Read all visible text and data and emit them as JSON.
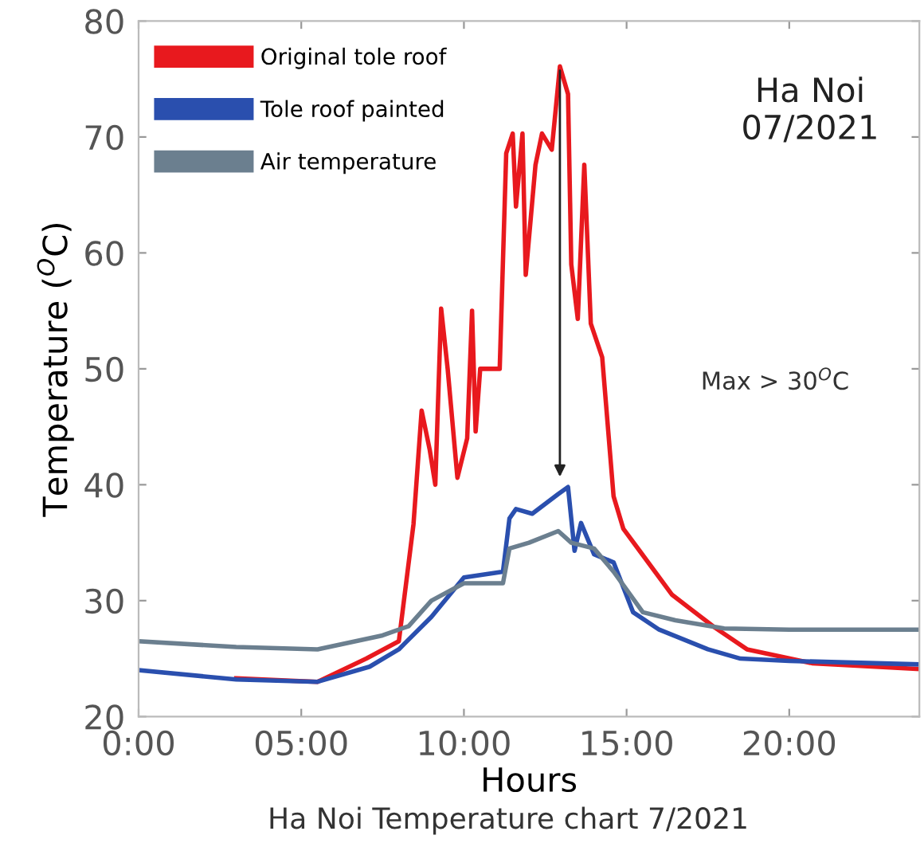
{
  "chart_data": {
    "type": "line",
    "xlabel": "Hours",
    "ylabel": "Temperature ($^{O}$C)",
    "xlim": [
      0,
      24
    ],
    "ylim": [
      20,
      80
    ],
    "xticks": [
      {
        "value": 0,
        "label": "0:00"
      },
      {
        "value": 5,
        "label": "05:00"
      },
      {
        "value": 10,
        "label": "10:00"
      },
      {
        "value": 15,
        "label": "15:00"
      },
      {
        "value": 20,
        "label": "20:00"
      }
    ],
    "yticks": [
      20,
      30,
      40,
      50,
      60,
      70,
      80
    ],
    "grid": false,
    "legend": "top left",
    "marker": "none",
    "line_style": "solid",
    "annotations": [
      "Max > 30$^{O}$C",
      "Ha Noi\n07/2021",
      "Ha Noi Temperature chart 7/2021"
    ],
    "series": [
      {
        "name": "Original tole roof",
        "color": "#e8191e",
        "x": [
          3,
          5.5,
          7,
          8,
          8.45,
          8.7,
          8.95,
          9.12,
          9.3,
          9.5,
          9.8,
          10.1,
          10.25,
          10.36,
          10.5,
          11.1,
          11.3,
          11.5,
          11.6,
          11.8,
          11.9,
          12.2,
          12.4,
          12.7,
          12.95,
          13.2,
          13.3,
          13.5,
          13.7,
          13.9,
          14.25,
          14.6,
          14.9,
          15.4,
          16.4,
          17.7,
          18.7,
          20.7,
          24
        ],
        "values": [
          23.3,
          23,
          25,
          26.5,
          36.6,
          46.4,
          43,
          40,
          55.2,
          50,
          40.6,
          44,
          55,
          44.6,
          50,
          50,
          68.6,
          70.3,
          64,
          70.3,
          58.1,
          67.6,
          70.3,
          68.9,
          76.1,
          73.7,
          59,
          54.3,
          67.6,
          53.9,
          51,
          39,
          36.2,
          34.3,
          30.5,
          27.7,
          25.8,
          24.6,
          24.1
        ]
      },
      {
        "name": "Tole roof painted",
        "color": "#2a4fae",
        "x": [
          0,
          3,
          5.5,
          7.1,
          8,
          9,
          10,
          11.2,
          11.4,
          11.6,
          12.1,
          12.9,
          13.2,
          13.4,
          13.6,
          14,
          14.6,
          15.2,
          16,
          17.5,
          18.5,
          20,
          24
        ],
        "values": [
          24,
          23.2,
          23,
          24.3,
          25.8,
          28.6,
          32,
          32.5,
          37.1,
          37.9,
          37.5,
          39.2,
          39.8,
          34.3,
          36.7,
          34,
          33.3,
          29,
          27.5,
          25.8,
          25,
          24.8,
          24.5
        ]
      },
      {
        "name": "Air temperature",
        "color": "#6b7f8f",
        "x": [
          0,
          3,
          5.5,
          7.5,
          8.3,
          9,
          10,
          11.2,
          11.4,
          12,
          12.9,
          13.3,
          14,
          14.6,
          15.5,
          16.5,
          18,
          20,
          24
        ],
        "values": [
          26.5,
          26,
          25.8,
          27,
          27.8,
          30,
          31.5,
          31.5,
          34.5,
          35,
          36,
          35,
          34.5,
          32.5,
          29,
          28.3,
          27.6,
          27.5,
          27.5
        ]
      }
    ]
  }
}
